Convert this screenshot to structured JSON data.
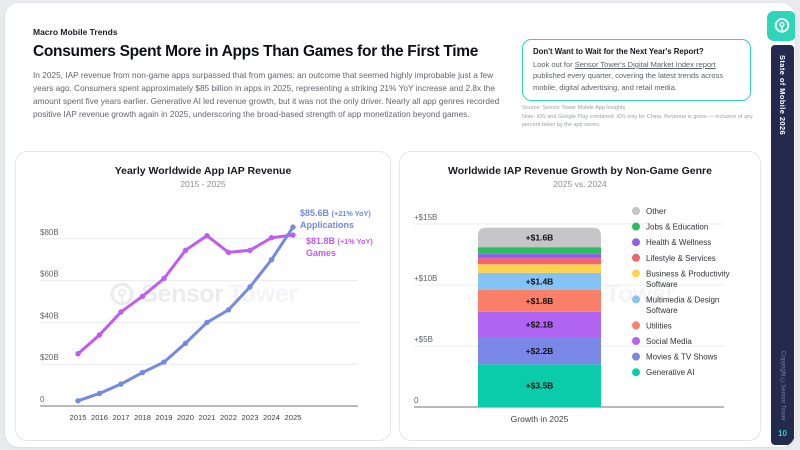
{
  "page": {
    "eyebrow": "Macro Mobile Trends",
    "title": "Consumers Spent More in Apps Than Games for the First Time",
    "body": "In 2025, IAP revenue from non-game apps surpassed that from games: an outcome that seemed highly improbable just a few years ago. Consumers spent approximately $85 billion in apps in 2025, representing a striking 21% YoY increase and 2.8x the amount spent five years earlier. Generative AI led revenue growth, but it was not the only driver. Nearly all app genres recorded positive IAP revenue growth again in 2025, underscoring the broad-based strength of app monetization beyond games."
  },
  "callout": {
    "heading": "Don't Want to Wait for the Next Year's Report?",
    "body_prefix": "Look out for ",
    "link_text": "Sensor Tower's Digital Market Index report",
    "body_suffix": " published every quarter, covering the latest trends across mobile, digital advertising, and retail media.",
    "accent_color": "#2fd5b8"
  },
  "footnote": {
    "source": "Source: Sensor Tower Mobile App Insights",
    "note": "Note: iOS and Google Play combined; iOS only for China. Revenue is gross — inclusive of any percent taken by the app stores."
  },
  "watermark": {
    "bold": "Sensor",
    "light": "Tower"
  },
  "sidebar": {
    "brand": "State of Mobile 2026",
    "copyright": "Copyright ©Sensor Tower",
    "page_number": "10",
    "bg_color": "#232a4d",
    "accent_color": "#2fd5b8"
  },
  "chart_data": [
    {
      "type": "line",
      "title": "Yearly Worldwide App IAP Revenue",
      "subtitle": "2015 - 2025",
      "x": [
        "2015",
        "2016",
        "2017",
        "2018",
        "2019",
        "2020",
        "2021",
        "2022",
        "2023",
        "2024",
        "2025"
      ],
      "series": [
        {
          "name": "Applications",
          "color": "#7489e4",
          "values": [
            2.5,
            6,
            10.5,
            16,
            21,
            30,
            40,
            46,
            57,
            70,
            85.6
          ],
          "end_value": "$85.6B",
          "end_yoy": "(+21% YoY)"
        },
        {
          "name": "Games",
          "color": "#c05cf2",
          "values": [
            25,
            34,
            45,
            52.5,
            61,
            74.5,
            81.5,
            73.5,
            74.5,
            80.5,
            81.8
          ],
          "end_value": "$81.8B",
          "end_yoy": "(+1% YoY)"
        }
      ],
      "ylim": [
        0,
        88
      ],
      "yticks": [
        {
          "v": 0,
          "label": "0"
        },
        {
          "v": 20,
          "label": "$20B"
        },
        {
          "v": 40,
          "label": "$40B"
        },
        {
          "v": 60,
          "label": "$60B"
        },
        {
          "v": 80,
          "label": "$80B"
        }
      ],
      "grid": true,
      "legend_position": "end-of-line annotations"
    },
    {
      "type": "bar",
      "title": "Worldwide IAP Revenue Growth by Non-Game Genre",
      "subtitle": "2025 vs. 2024",
      "xlabel": "Growth in 2025",
      "ylim": [
        0,
        15.5
      ],
      "yticks": [
        {
          "v": 0,
          "label": "0"
        },
        {
          "v": 5,
          "label": "+$5B"
        },
        {
          "v": 10,
          "label": "+$10B"
        },
        {
          "v": 15,
          "label": "+$15B"
        }
      ],
      "grid": true,
      "legend_position": "right",
      "stacking_note": "single stacked bar; segments listed bottom-to-top; unlabeled values estimated from pixel heights",
      "segments": [
        {
          "name": "Generative AI",
          "value": 3.5,
          "label": "+$3.5B",
          "color": "#0accaa",
          "legend_label": "Generative AI"
        },
        {
          "name": "Movies & TV Shows",
          "value": 2.2,
          "label": "+$2.2B",
          "color": "#7b87e6",
          "legend_label": "Movies & TV Shows"
        },
        {
          "name": "Social Media",
          "value": 2.1,
          "label": "+$2.1B",
          "color": "#b163f2",
          "legend_label": "Social Media"
        },
        {
          "name": "Utilities",
          "value": 1.8,
          "label": "+$1.8B",
          "color": "#fa7f68",
          "legend_label": "Utilities"
        },
        {
          "name": "Multimedia & Design Software",
          "value": 1.4,
          "label": "+$1.4B",
          "color": "#85c3f4",
          "legend_label": "Multimedia & Design\nSoftware"
        },
        {
          "name": "Business & Productivity Software",
          "value": 0.7,
          "label": "",
          "color": "#fdd44e",
          "legend_label": "Business & Productivity\nSoftware"
        },
        {
          "name": "Lifestyle & Services",
          "value": 0.5,
          "label": "",
          "color": "#f4646e",
          "legend_label": "Lifestyle & Services"
        },
        {
          "name": "Health & Wellness",
          "value": 0.4,
          "label": "",
          "color": "#9061f0",
          "legend_label": "Health & Wellness"
        },
        {
          "name": "Jobs & Education",
          "value": 0.5,
          "label": "",
          "color": "#2abd60",
          "legend_label": "Jobs & Education"
        },
        {
          "name": "Other",
          "value": 1.6,
          "label": "+$1.6B",
          "color": "#c6c6c8",
          "legend_label": "Other"
        }
      ]
    }
  ]
}
